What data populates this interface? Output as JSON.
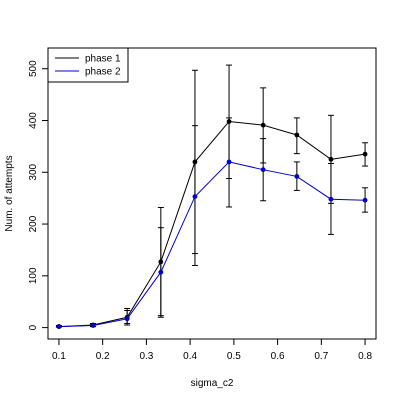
{
  "chart_data": {
    "type": "line",
    "title": "",
    "xlabel": "sigma_c2",
    "ylabel": "Num. of attempts",
    "xlim": [
      0.075,
      0.825
    ],
    "ylim": [
      -22,
      540
    ],
    "x_ticks": [
      "0.1",
      "0.2",
      "0.3",
      "0.4",
      "0.5",
      "0.6",
      "0.7",
      "0.8"
    ],
    "y_ticks": [
      "0",
      "100",
      "200",
      "300",
      "400",
      "500"
    ],
    "grid": false,
    "legend_position": "top-left",
    "x": [
      0.1,
      0.178,
      0.256,
      0.333,
      0.411,
      0.489,
      0.567,
      0.644,
      0.722,
      0.8
    ],
    "series": [
      {
        "name": "phase 1",
        "color": "#000000",
        "values": [
          2,
          5,
          20,
          127,
          320,
          398,
          391,
          372,
          325,
          335
        ],
        "err_low": [
          1,
          2,
          8,
          20,
          143,
          288,
          318,
          336,
          240,
          312
        ],
        "err_high": [
          4,
          8,
          37,
          232,
          497,
          507,
          463,
          405,
          410,
          357
        ]
      },
      {
        "name": "phase 2",
        "color": "#0000cc",
        "values": [
          2,
          4,
          17,
          107,
          253,
          320,
          305,
          292,
          248,
          246
        ],
        "err_low": [
          1,
          2,
          5,
          23,
          120,
          233,
          245,
          265,
          180,
          223
        ],
        "err_high": [
          3,
          7,
          33,
          193,
          390,
          405,
          365,
          320,
          317,
          270
        ]
      }
    ]
  }
}
